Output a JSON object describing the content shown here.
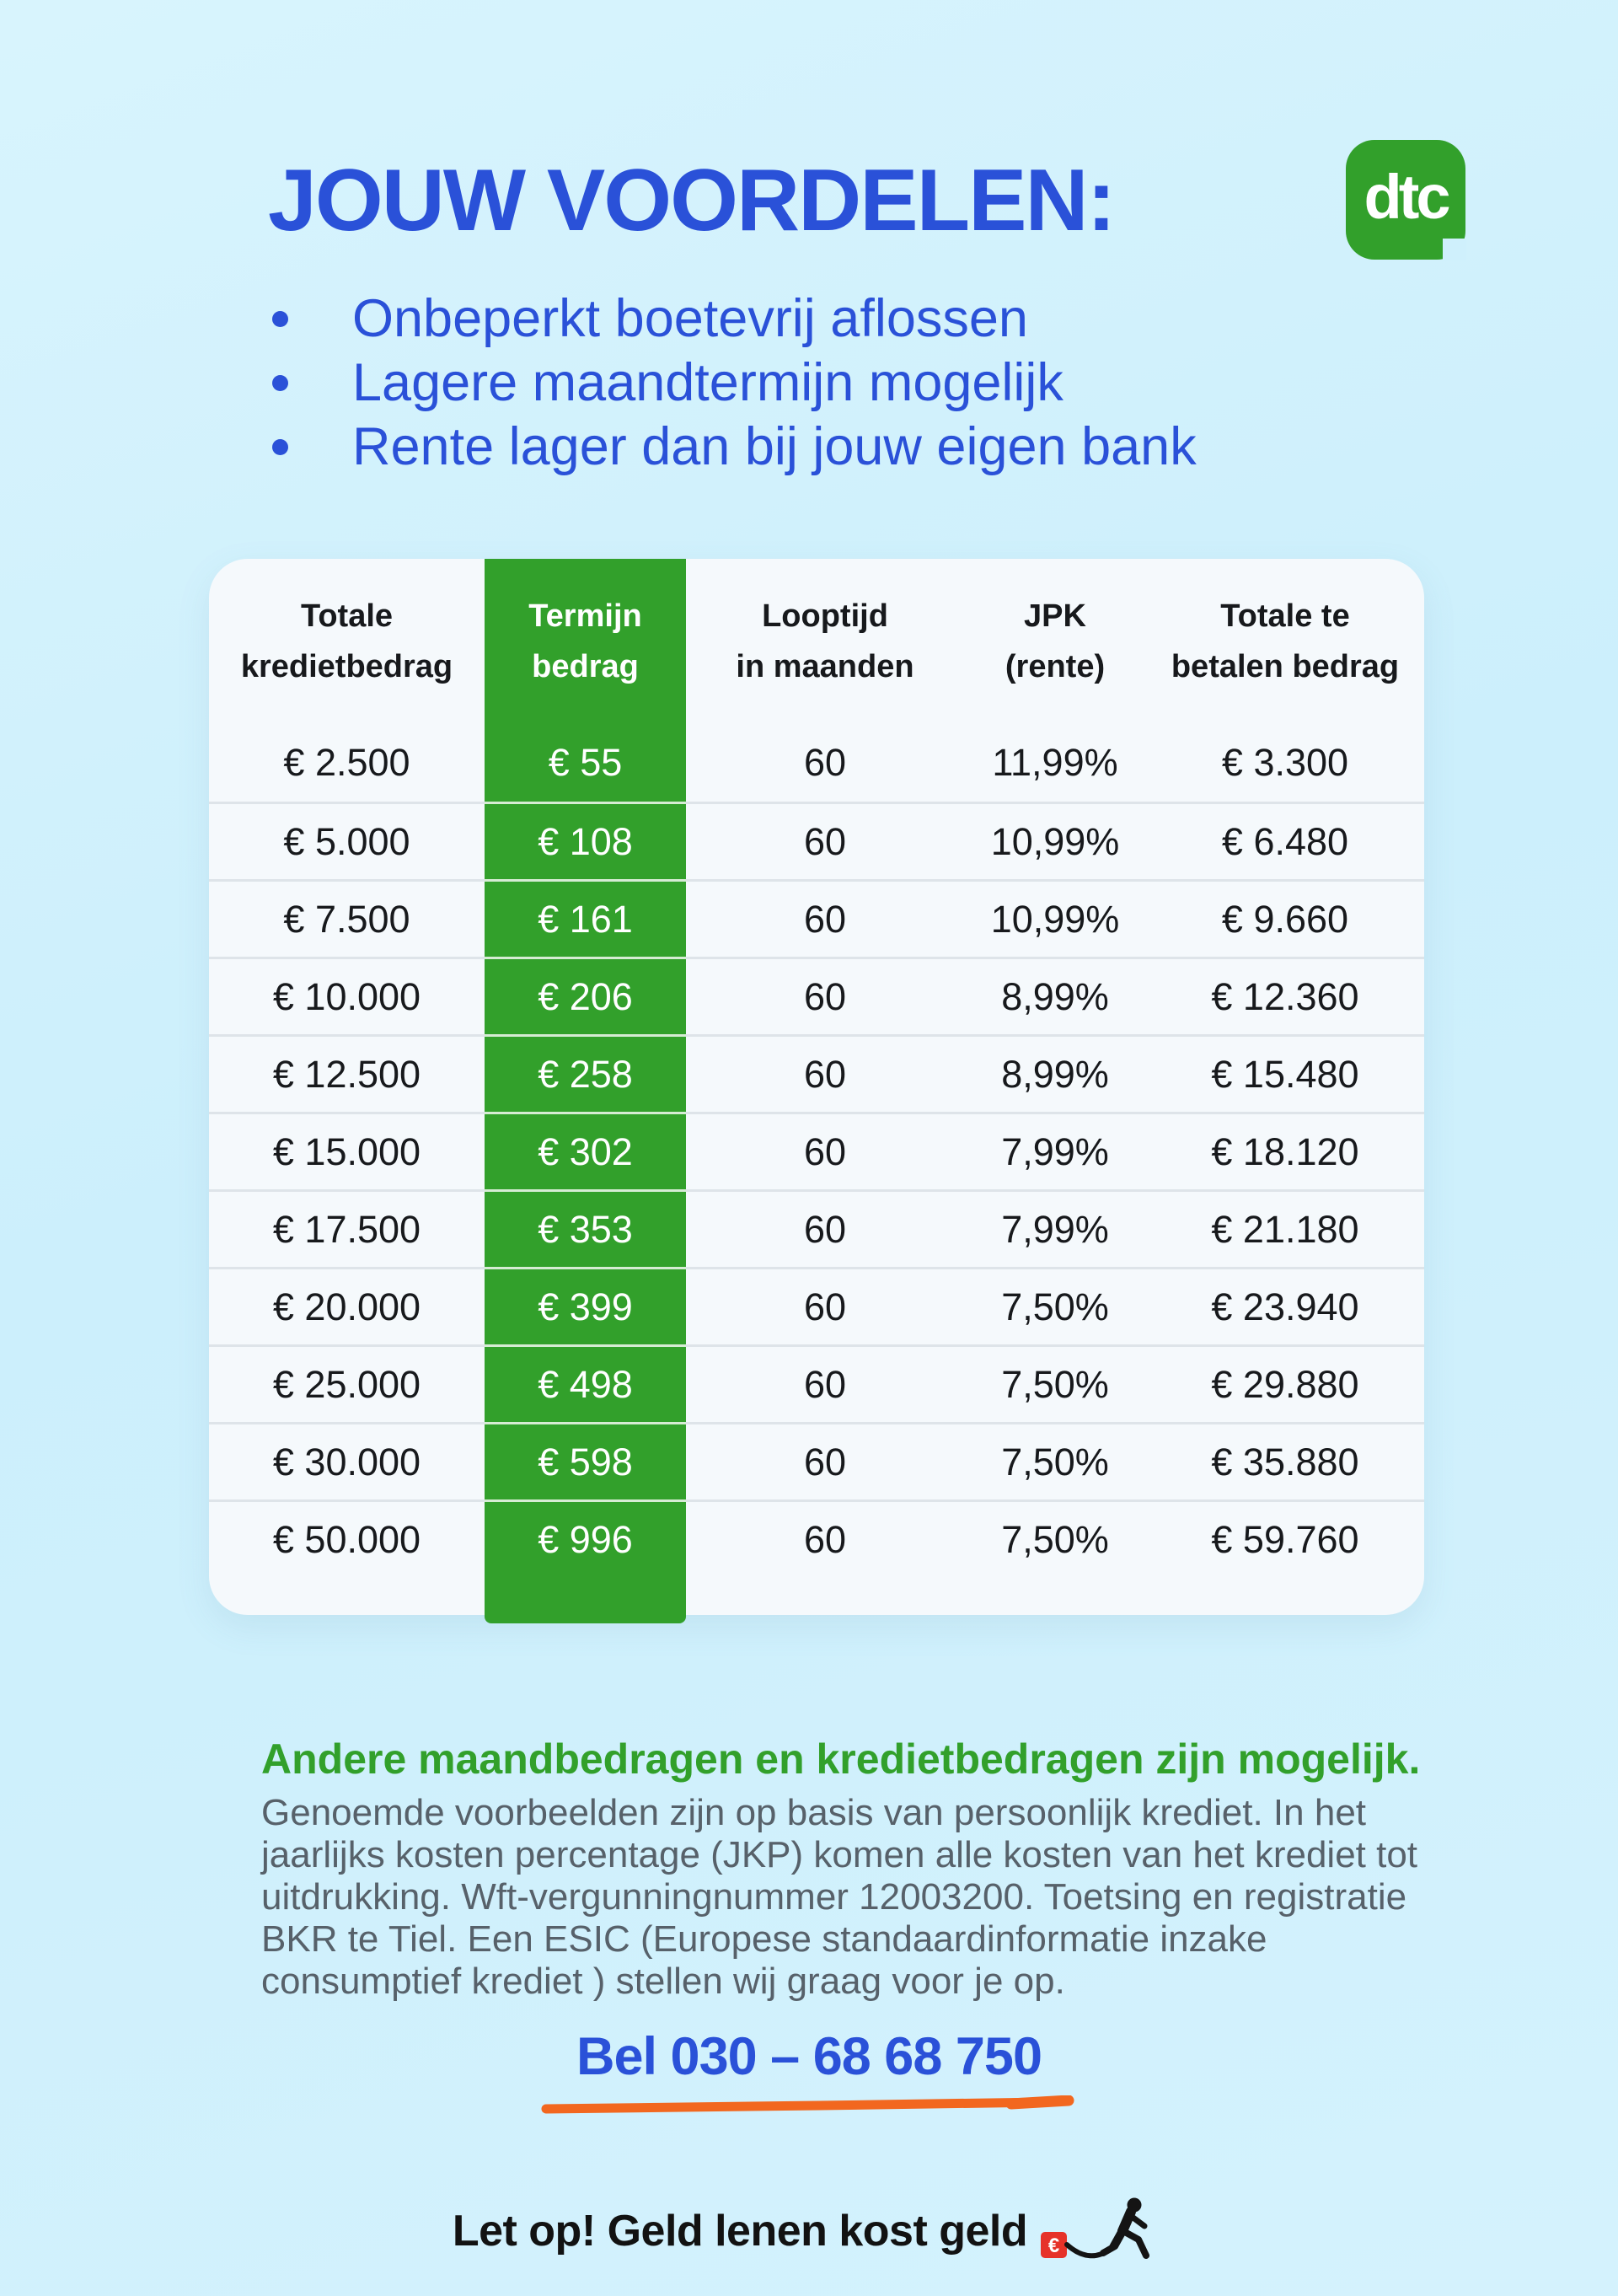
{
  "colors": {
    "background": "#cff0fc",
    "accent_blue": "#2a51d8",
    "accent_green": "#32a02b",
    "card_background": "#f5f9fc",
    "divider": "#dee4e9",
    "orange_underline": "#f2671f",
    "warning_red": "#e63229"
  },
  "header": {
    "title": "JOUW VOORDELEN:",
    "benefits": [
      "Onbeperkt boetevrij aflossen",
      "Lagere maandtermijn mogelijk",
      "Rente lager dan bij jouw eigen bank"
    ],
    "logo_text": "dtc"
  },
  "table": {
    "columns": [
      {
        "line1": "Totale",
        "line2": "kredietbedrag",
        "highlight": false
      },
      {
        "line1": "Termijn",
        "line2": "bedrag",
        "highlight": true
      },
      {
        "line1": "Looptijd",
        "line2": "in maanden",
        "highlight": false
      },
      {
        "line1": "JPK",
        "line2": "(rente)",
        "highlight": false
      },
      {
        "line1": "Totale te",
        "line2": "betalen bedrag",
        "highlight": false
      }
    ],
    "rows": [
      [
        "€ 2.500",
        "€ 55",
        "60",
        "11,99%",
        "€ 3.300"
      ],
      [
        "€ 5.000",
        "€ 108",
        "60",
        "10,99%",
        "€ 6.480"
      ],
      [
        "€ 7.500",
        "€ 161",
        "60",
        "10,99%",
        "€ 9.660"
      ],
      [
        "€ 10.000",
        "€ 206",
        "60",
        "8,99%",
        "€ 12.360"
      ],
      [
        "€ 12.500",
        "€ 258",
        "60",
        "8,99%",
        "€ 15.480"
      ],
      [
        "€ 15.000",
        "€ 302",
        "60",
        "7,99%",
        "€ 18.120"
      ],
      [
        "€ 17.500",
        "€ 353",
        "60",
        "7,99%",
        "€ 21.180"
      ],
      [
        "€ 20.000",
        "€ 399",
        "60",
        "7,50%",
        "€ 23.940"
      ],
      [
        "€ 25.000",
        "€ 498",
        "60",
        "7,50%",
        "€ 29.880"
      ],
      [
        "€ 30.000",
        "€ 598",
        "60",
        "7,50%",
        "€ 35.880"
      ],
      [
        "€ 50.000",
        "€ 996",
        "60",
        "7,50%",
        "€ 59.760"
      ]
    ]
  },
  "footer": {
    "note_title": "Andere maandbedragen en kredietbedragen zijn mogelijk.",
    "note_lines": [
      "Genoemde voorbeelden zijn op basis van persoonlijk krediet. In het",
      "jaarlijks kosten percentage (JKP) komen alle kosten van het krediet tot",
      "uitdrukking. Wft-vergunningnummer 12003200. Toetsing en registratie",
      "BKR te Tiel. Een ESIC (Europese standaardinformatie inzake",
      "consumptief krediet ) stellen wij graag voor je op."
    ],
    "phone": "Bel 030 – 68 68 750",
    "warning": "Let op! Geld lenen kost geld",
    "euro_symbol": "€"
  }
}
